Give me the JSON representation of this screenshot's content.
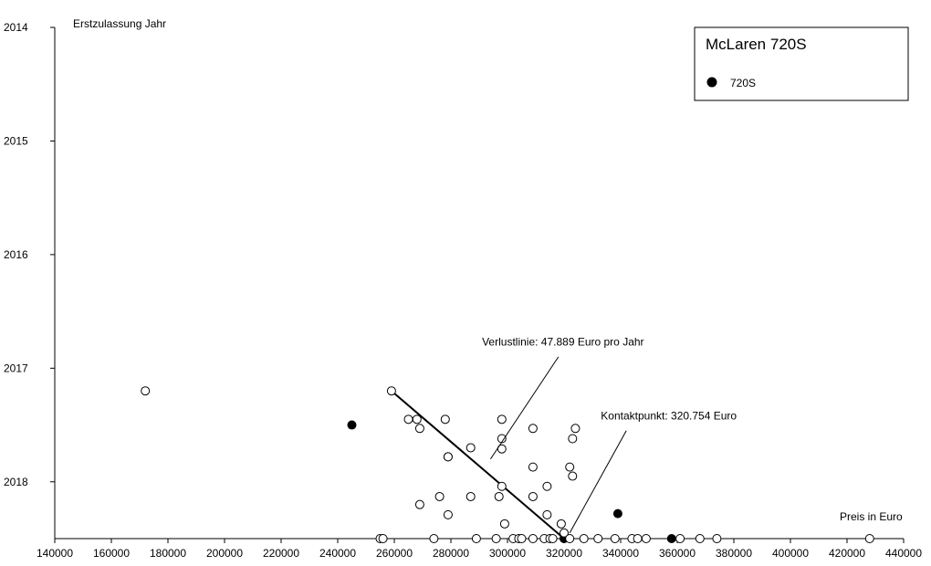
{
  "chart_data": {
    "type": "scatter",
    "title": "McLaren 720S",
    "xlabel": "Preis in Euro",
    "ylabel": "Erstzulassung Jahr",
    "xlim": [
      140000,
      440000
    ],
    "ylim": [
      2014,
      2018.5
    ],
    "y_inverted": true,
    "x_ticks": [
      140000,
      160000,
      180000,
      200000,
      220000,
      240000,
      260000,
      280000,
      300000,
      320000,
      340000,
      360000,
      380000,
      400000,
      420000,
      440000
    ],
    "y_ticks": [
      2014,
      2015,
      2016,
      2017,
      2018
    ],
    "grid": false,
    "legend": {
      "position": "top-right",
      "entries": [
        {
          "label": "720S",
          "marker": "filled-circle"
        }
      ]
    },
    "series": [
      {
        "name": "720S",
        "marker": "filled-circle",
        "points": [
          [
            245000,
            2017.5
          ],
          [
            320000,
            2018.5
          ],
          [
            339000,
            2018.28
          ],
          [
            358000,
            2018.5
          ]
        ]
      },
      {
        "marker": "open-circle",
        "points": [
          [
            172000,
            2017.2
          ],
          [
            259000,
            2017.2
          ],
          [
            265000,
            2017.45
          ],
          [
            268000,
            2017.45
          ],
          [
            269000,
            2017.53
          ],
          [
            278000,
            2017.45
          ],
          [
            279000,
            2017.78
          ],
          [
            279000,
            2017.78
          ],
          [
            287000,
            2017.7
          ],
          [
            298000,
            2017.45
          ],
          [
            298000,
            2017.62
          ],
          [
            298000,
            2017.71
          ],
          [
            309000,
            2017.53
          ],
          [
            323000,
            2017.62
          ],
          [
            324000,
            2017.53
          ],
          [
            309000,
            2017.87
          ],
          [
            322000,
            2017.87
          ],
          [
            323000,
            2017.95
          ],
          [
            314000,
            2018.04
          ],
          [
            298000,
            2018.04
          ],
          [
            276000,
            2018.13
          ],
          [
            287000,
            2018.13
          ],
          [
            297000,
            2018.13
          ],
          [
            309000,
            2018.13
          ],
          [
            269000,
            2018.2
          ],
          [
            279000,
            2018.29
          ],
          [
            314000,
            2018.29
          ],
          [
            299000,
            2018.37
          ],
          [
            319000,
            2018.37
          ],
          [
            320000,
            2018.45
          ],
          [
            255000,
            2018.5
          ],
          [
            256000,
            2018.5
          ],
          [
            274000,
            2018.5
          ],
          [
            289000,
            2018.5
          ],
          [
            296000,
            2018.5
          ],
          [
            302000,
            2018.5
          ],
          [
            304000,
            2018.5
          ],
          [
            305000,
            2018.5
          ],
          [
            309000,
            2018.5
          ],
          [
            313000,
            2018.5
          ],
          [
            315000,
            2018.5
          ],
          [
            316000,
            2018.5
          ],
          [
            322000,
            2018.5
          ],
          [
            327000,
            2018.5
          ],
          [
            332000,
            2018.5
          ],
          [
            338000,
            2018.5
          ],
          [
            344000,
            2018.5
          ],
          [
            346000,
            2018.5
          ],
          [
            349000,
            2018.5
          ],
          [
            361000,
            2018.5
          ],
          [
            368000,
            2018.5
          ],
          [
            374000,
            2018.5
          ],
          [
            428000,
            2018.5
          ]
        ]
      }
    ],
    "lines": [
      {
        "name": "Verlustlinie",
        "from": [
          259000,
          2017.2
        ],
        "to": [
          320000,
          2018.5
        ]
      }
    ],
    "annotations": [
      {
        "label": "Verlustlinie:",
        "value": "47.889",
        "unit": "Euro pro Jahr",
        "at": [
          291000,
          2016.8
        ],
        "pointer_from": [
          318000,
          2016.9
        ],
        "pointer_to": [
          294000,
          2017.8
        ]
      },
      {
        "label": "Kontaktpunkt:",
        "value": "320.754",
        "unit": "Euro",
        "at": [
          333000,
          2017.45
        ],
        "pointer_from": [
          342000,
          2017.55
        ],
        "pointer_to": [
          322000,
          2018.45
        ]
      }
    ]
  }
}
